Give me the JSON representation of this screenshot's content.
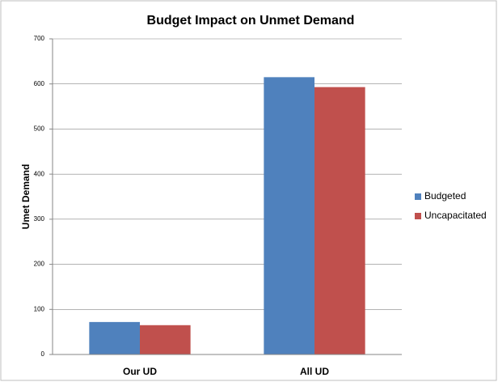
{
  "chart_data": {
    "type": "bar",
    "title": "Budget Impact on Unmet Demand",
    "y_label": "Umet Demand",
    "categories": [
      "Our UD",
      "All UD"
    ],
    "series": [
      {
        "name": "Budgeted",
        "color": "#4f81bd",
        "values": [
          72,
          615
        ]
      },
      {
        "name": "Uncapacitated",
        "color": "#c0504d",
        "values": [
          65,
          593
        ]
      }
    ],
    "ylim": [
      0,
      700
    ],
    "yticks": [
      0,
      100,
      200,
      300,
      400,
      500,
      600,
      700
    ],
    "grid": true,
    "legend": "right"
  }
}
